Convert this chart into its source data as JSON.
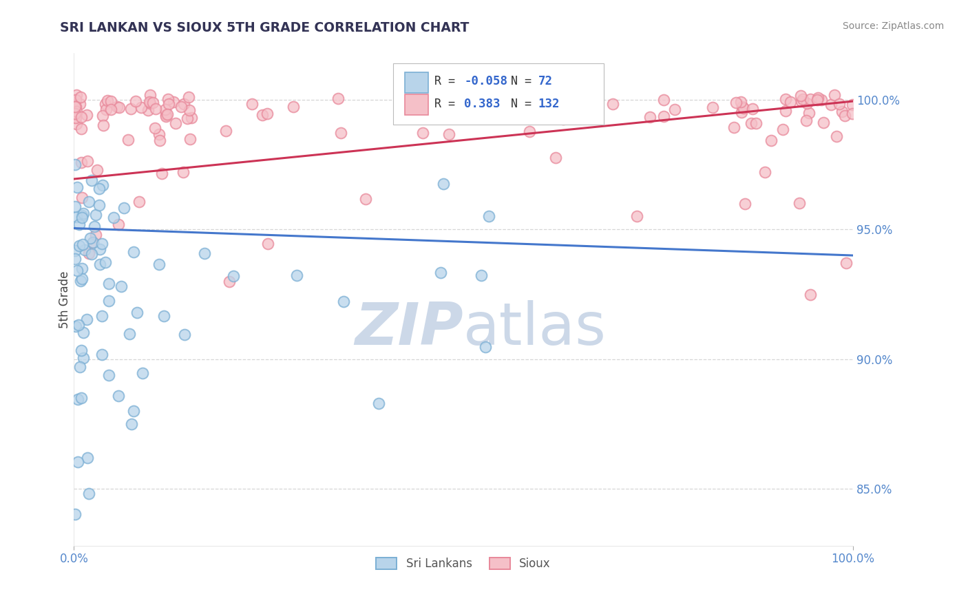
{
  "title": "SRI LANKAN VS SIOUX 5TH GRADE CORRELATION CHART",
  "source_text": "Source: ZipAtlas.com",
  "ylabel": "5th Grade",
  "xlim": [
    0.0,
    1.0
  ],
  "ylim": [
    0.828,
    1.018
  ],
  "yticks": [
    0.85,
    0.9,
    0.95,
    1.0
  ],
  "ytick_labels": [
    "85.0%",
    "90.0%",
    "95.0%",
    "100.0%"
  ],
  "blue_color": "#7bafd4",
  "blue_fill": "#b8d4ea",
  "pink_color": "#e8889a",
  "pink_fill": "#f5c0c8",
  "blue_line_color": "#4477cc",
  "pink_line_color": "#cc3355",
  "legend_R_blue": "-0.058",
  "legend_N_blue": "72",
  "legend_R_pink": "0.383",
  "legend_N_pink": "132",
  "blue_line_y_start": 0.9505,
  "blue_line_y_end": 0.94,
  "pink_line_y_start": 0.9695,
  "pink_line_y_end": 0.9995,
  "background_color": "#ffffff",
  "grid_color": "#cccccc",
  "watermark_color": "#ccd8e8"
}
